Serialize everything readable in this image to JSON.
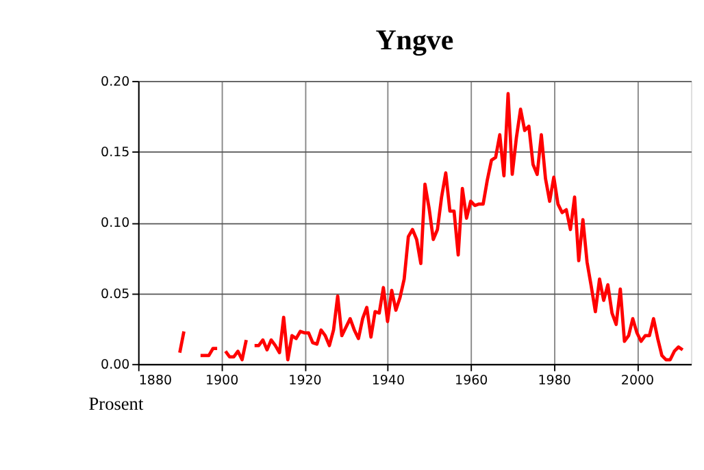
{
  "chart_data": {
    "type": "line",
    "title": "Yngve",
    "annotations": [
      "Prosent"
    ],
    "x": [
      1890,
      1891,
      1892,
      1893,
      1894,
      1895,
      1896,
      1897,
      1898,
      1899,
      1900,
      1901,
      1902,
      1903,
      1904,
      1905,
      1906,
      1907,
      1908,
      1909,
      1910,
      1911,
      1912,
      1913,
      1914,
      1915,
      1916,
      1917,
      1918,
      1919,
      1920,
      1921,
      1922,
      1923,
      1924,
      1925,
      1926,
      1927,
      1928,
      1929,
      1930,
      1931,
      1932,
      1933,
      1934,
      1935,
      1936,
      1937,
      1938,
      1939,
      1940,
      1941,
      1942,
      1943,
      1944,
      1945,
      1946,
      1947,
      1948,
      1949,
      1950,
      1951,
      1952,
      1953,
      1954,
      1955,
      1956,
      1957,
      1958,
      1959,
      1960,
      1961,
      1962,
      1963,
      1964,
      1965,
      1966,
      1967,
      1968,
      1969,
      1970,
      1971,
      1972,
      1973,
      1974,
      1975,
      1976,
      1977,
      1978,
      1979,
      1980,
      1981,
      1982,
      1983,
      1984,
      1985,
      1986,
      1987,
      1988,
      1989,
      1990,
      1991,
      1992,
      1993,
      1994,
      1995,
      1996,
      1997,
      1998,
      1999,
      2000,
      2001,
      2002,
      2003,
      2004,
      2005,
      2006,
      2007,
      2008,
      2009,
      2010,
      2011
    ],
    "series": [
      {
        "color": "#ff0000",
        "values": [
          0.008,
          0.023,
          null,
          null,
          null,
          0.006,
          0.006,
          0.006,
          0.011,
          0.011,
          null,
          0.009,
          0.005,
          0.005,
          0.009,
          0.003,
          0.017,
          null,
          0.013,
          0.013,
          0.017,
          0.01,
          0.017,
          0.013,
          0.008,
          0.033,
          0.003,
          0.02,
          0.018,
          0.023,
          0.022,
          0.022,
          0.015,
          0.014,
          0.024,
          0.02,
          0.013,
          0.024,
          0.048,
          0.02,
          0.026,
          0.032,
          0.024,
          0.018,
          0.032,
          0.04,
          0.019,
          0.037,
          0.036,
          0.054,
          0.03,
          0.052,
          0.038,
          0.047,
          0.06,
          0.09,
          0.095,
          0.088,
          0.071,
          0.127,
          0.11,
          0.088,
          0.095,
          0.118,
          0.135,
          0.108,
          0.108,
          0.077,
          0.124,
          0.103,
          0.115,
          0.112,
          0.113,
          0.113,
          0.13,
          0.144,
          0.146,
          0.162,
          0.133,
          0.191,
          0.134,
          0.16,
          0.18,
          0.165,
          0.168,
          0.141,
          0.134,
          0.162,
          0.131,
          0.115,
          0.132,
          0.113,
          0.107,
          0.109,
          0.095,
          0.118,
          0.073,
          0.102,
          0.072,
          0.055,
          0.037,
          0.06,
          0.045,
          0.056,
          0.036,
          0.028,
          0.053,
          0.016,
          0.02,
          0.032,
          0.022,
          0.016,
          0.02,
          0.02,
          0.032,
          0.018,
          0.006,
          0.003,
          0.003,
          0.009,
          0.012,
          0.01
        ]
      }
    ],
    "xlim": [
      1880,
      2013
    ],
    "xticks": [
      1880,
      1900,
      1920,
      1940,
      1960,
      1980,
      2000
    ],
    "ylim": [
      0,
      0.2
    ],
    "yticks": [
      {
        "value": 0,
        "label": "0.00"
      },
      {
        "value": 0.05,
        "label": "0.05"
      },
      {
        "value": 0.1,
        "label": "0.10"
      },
      {
        "value": 0.15,
        "label": "0.15"
      },
      {
        "value": 0.2,
        "label": "0.20"
      }
    ],
    "grid": true,
    "legend": false,
    "marker": "none",
    "line_style": "solid"
  }
}
